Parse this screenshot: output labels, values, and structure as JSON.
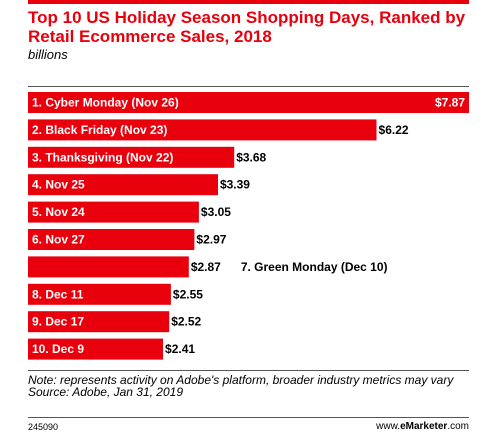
{
  "header": {
    "title": "Top 10 US Holiday Season Shopping Days, Ranked by Retail Ecommerce Sales, 2018",
    "subtitle": "billions"
  },
  "chart_data": {
    "type": "bar",
    "orientation": "horizontal",
    "title": "Top 10 US Holiday Season Shopping Days, Ranked by Retail Ecommerce Sales, 2018",
    "unit": "billions",
    "categories": [
      "1. Cyber Monday (Nov 26)",
      "2. Black Friday (Nov 23)",
      "3. Thanksgiving (Nov 22)",
      "4. Nov 25",
      "5. Nov 24",
      "6. Nov 27",
      "7. Green Monday (Dec 10)",
      "8. Dec 11",
      "9. Dec 17",
      "10. Dec 9"
    ],
    "values": [
      7.87,
      6.22,
      3.68,
      3.39,
      3.05,
      2.97,
      2.87,
      2.55,
      2.52,
      2.41
    ],
    "value_labels": [
      "$7.87",
      "$6.22",
      "$3.68",
      "$3.39",
      "$3.05",
      "$2.97",
      "$2.87",
      "$2.55",
      "$2.52",
      "$2.41"
    ],
    "bar_color": "#e8000d",
    "grid": false
  },
  "footer": {
    "note": "Note: represents activity on Adobe's platform, broader industry metrics may vary",
    "source": "Source: Adobe, Jan 31, 2019",
    "chart_id": "245090",
    "brand_prefix": "www.",
    "brand_name": "eMarketer",
    "brand_suffix": ".com"
  }
}
